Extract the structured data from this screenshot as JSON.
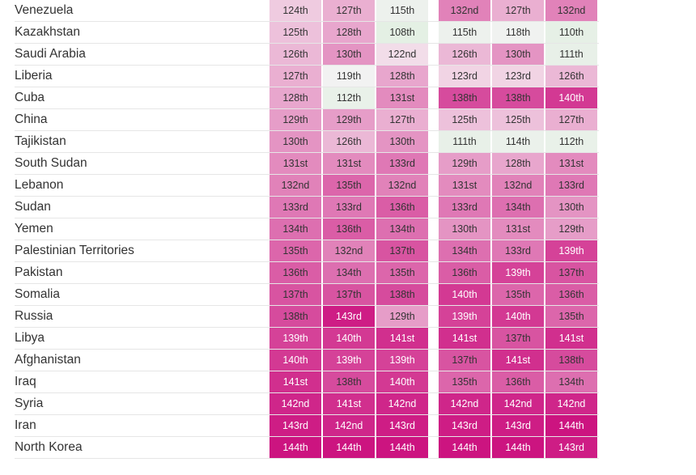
{
  "table": {
    "rows": [
      {
        "country": "Venezuela",
        "ranks": [
          "124th",
          "127th",
          "115th",
          "132nd",
          "127th",
          "132nd"
        ]
      },
      {
        "country": "Kazakhstan",
        "ranks": [
          "125th",
          "128th",
          "108th",
          "115th",
          "118th",
          "110th"
        ]
      },
      {
        "country": "Saudi Arabia",
        "ranks": [
          "126th",
          "130th",
          "122nd",
          "126th",
          "130th",
          "111th"
        ]
      },
      {
        "country": "Liberia",
        "ranks": [
          "127th",
          "119th",
          "128th",
          "123rd",
          "123rd",
          "126th"
        ]
      },
      {
        "country": "Cuba",
        "ranks": [
          "128th",
          "112th",
          "131st",
          "138th",
          "138th",
          "140th"
        ]
      },
      {
        "country": "China",
        "ranks": [
          "129th",
          "129th",
          "127th",
          "125th",
          "125th",
          "127th"
        ]
      },
      {
        "country": "Tajikistan",
        "ranks": [
          "130th",
          "126th",
          "130th",
          "111th",
          "114th",
          "112th"
        ]
      },
      {
        "country": "South Sudan",
        "ranks": [
          "131st",
          "131st",
          "133rd",
          "129th",
          "128th",
          "131st"
        ]
      },
      {
        "country": "Lebanon",
        "ranks": [
          "132nd",
          "135th",
          "132nd",
          "131st",
          "132nd",
          "133rd"
        ]
      },
      {
        "country": "Sudan",
        "ranks": [
          "133rd",
          "133rd",
          "136th",
          "133rd",
          "134th",
          "130th"
        ]
      },
      {
        "country": "Yemen",
        "ranks": [
          "134th",
          "136th",
          "134th",
          "130th",
          "131st",
          "129th"
        ]
      },
      {
        "country": "Palestinian Territories",
        "ranks": [
          "135th",
          "132nd",
          "137th",
          "134th",
          "133rd",
          "139th"
        ]
      },
      {
        "country": "Pakistan",
        "ranks": [
          "136th",
          "134th",
          "135th",
          "136th",
          "139th",
          "137th"
        ]
      },
      {
        "country": "Somalia",
        "ranks": [
          "137th",
          "137th",
          "138th",
          "140th",
          "135th",
          "136th"
        ]
      },
      {
        "country": "Russia",
        "ranks": [
          "138th",
          "143rd",
          "129th",
          "139th",
          "140th",
          "135th"
        ]
      },
      {
        "country": "Libya",
        "ranks": [
          "139th",
          "140th",
          "141st",
          "141st",
          "137th",
          "141st"
        ]
      },
      {
        "country": "Afghanistan",
        "ranks": [
          "140th",
          "139th",
          "139th",
          "137th",
          "141st",
          "138th"
        ]
      },
      {
        "country": "Iraq",
        "ranks": [
          "141st",
          "138th",
          "140th",
          "135th",
          "136th",
          "134th"
        ]
      },
      {
        "country": "Syria",
        "ranks": [
          "142nd",
          "141st",
          "142nd",
          "142nd",
          "142nd",
          "142nd"
        ]
      },
      {
        "country": "Iran",
        "ranks": [
          "143rd",
          "142nd",
          "143rd",
          "143rd",
          "143rd",
          "144th"
        ]
      },
      {
        "country": "North Korea",
        "ranks": [
          "144th",
          "144th",
          "144th",
          "144th",
          "144th",
          "143rd"
        ]
      }
    ]
  }
}
